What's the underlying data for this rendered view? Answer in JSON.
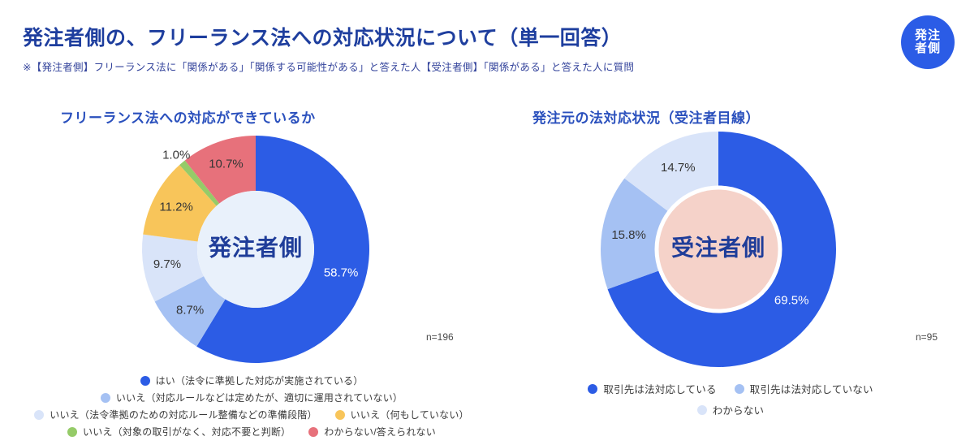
{
  "page": {
    "title": "発注者側の、フリーランス法への対応状況について（単一回答）",
    "subtitle": "※【発注者側】フリーランス法に「関係がある」「関係する可能性がある」と答えた人【受注者側】「関係がある」と答えた人に質問",
    "badge": {
      "line1": "発注",
      "line2": "者側",
      "color": "#2b5ce6"
    }
  },
  "colors": {
    "primary_blue": "#2c5ce5",
    "light_blue": "#a5c1f3",
    "pale_blue": "#d9e4f9",
    "yellow": "#f8c55a",
    "green": "#95cb68",
    "red": "#e7717b",
    "navy_text": "#1f3d99",
    "left_hole": "#e9f1fb",
    "right_hole": "#f5d2c9"
  },
  "chart_data": [
    {
      "type": "pie",
      "title": "フリーランス法への対応ができているか",
      "center_label": "発注者側",
      "n_label": "n=196",
      "categories": [
        "はい（法令に準拠した対応が実施されている）",
        "いいえ（対応ルールなどは定めたが、適切に運用されていない）",
        "いいえ（法令準拠のための対応ルール整備などの準備段階）",
        "いいえ（何もしていない）",
        "いいえ（対象の取引がなく、対応不要と判断）",
        "わからない/答えられない"
      ],
      "values": [
        58.7,
        8.7,
        9.7,
        11.2,
        1.0,
        10.7
      ],
      "colors": [
        "#2c5ce5",
        "#a5c1f3",
        "#d9e4f9",
        "#f8c55a",
        "#95cb68",
        "#e7717b"
      ],
      "label_r": [
        0.78,
        0.79,
        0.79,
        0.79,
        1.08,
        0.79
      ],
      "label_colors": [
        "#ffffff",
        "#363636",
        "#363636",
        "#363636",
        "#363636",
        "#363636"
      ],
      "legend_rows": [
        [
          0
        ],
        [
          1
        ],
        [
          2,
          3
        ],
        [
          4,
          5
        ]
      ],
      "outer_r": 140,
      "inner_r": 72,
      "center_bg": "#e9f1fb",
      "center_border": "",
      "start_angle": 0,
      "direction": "clockwise"
    },
    {
      "type": "pie",
      "title": "発注元の法対応状況（受注者目線）",
      "center_label": "受注者側",
      "n_label": "n=95",
      "categories": [
        "取引先は法対応している",
        "取引先は法対応していない",
        "わからない"
      ],
      "values": [
        69.5,
        15.8,
        14.7
      ],
      "colors": [
        "#2c5ce5",
        "#a5c1f3",
        "#d9e4f9"
      ],
      "label_r": [
        0.76,
        0.77,
        0.77
      ],
      "label_colors": [
        "#ffffff",
        "#363636",
        "#363636"
      ],
      "legend_rows": [
        [
          0,
          1
        ],
        [
          2
        ]
      ],
      "outer_r": 145,
      "inner_r": 76,
      "center_bg": "#f5d2c9",
      "center_border": "#ffffff",
      "start_angle": 0,
      "direction": "clockwise"
    }
  ]
}
